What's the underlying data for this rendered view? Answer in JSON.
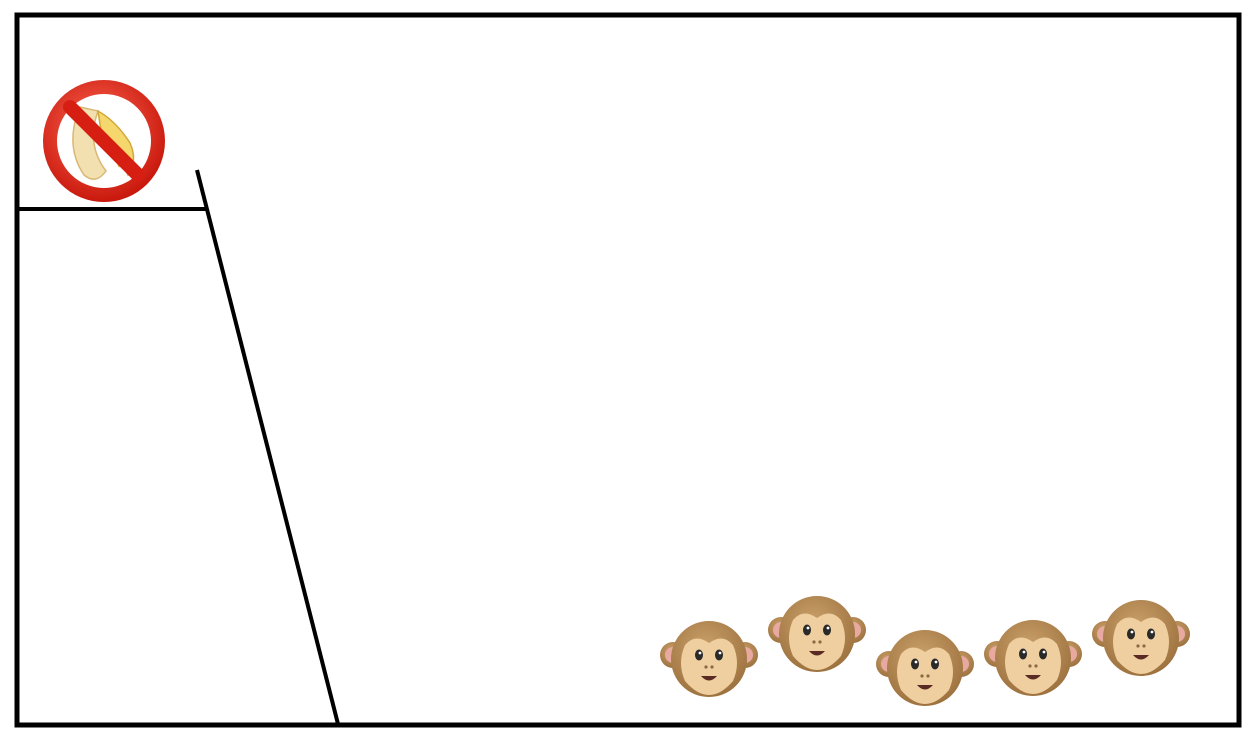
{
  "scene": {
    "frame_color": "#000000",
    "background_color": "#ffffff"
  },
  "no_banana_sign": {
    "icon": "no-banana-icon",
    "ring_color": "#e0281c",
    "banana_color": "#f5d76e"
  },
  "monkeys": {
    "icon": "monkey-face-icon",
    "count": 5,
    "fur_color": "#b98b52",
    "face_color": "#efcf9f",
    "ear_inner_color": "#e7a9a0"
  }
}
